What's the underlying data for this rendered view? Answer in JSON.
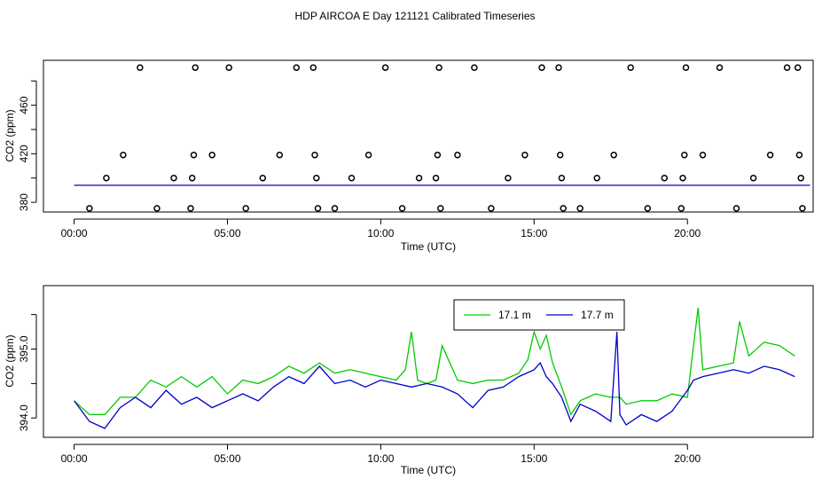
{
  "title": "HDP AIRCOA E  Day 121121  Calibrated Timeseries",
  "colors": {
    "series_green": "#00cc00",
    "series_blue": "#0000cc",
    "frame": "#000000"
  },
  "chart_data": [
    {
      "type": "scatter",
      "xlabel": "Time (UTC)",
      "ylabel": "CO2 (ppm)",
      "x_ticks": [
        "00:00",
        "05:00",
        "10:00",
        "15:00",
        "20:00"
      ],
      "x_tick_hours": [
        0,
        5,
        10,
        15,
        20
      ],
      "y_ticks": [
        380,
        420,
        460
      ],
      "y_minor_ticks": [
        380,
        400,
        420,
        440,
        460,
        480
      ],
      "xlim": [
        -1.0,
        24.1
      ],
      "ylim": [
        372,
        497
      ],
      "grid": false,
      "calibration_points": {
        "x": [
          0.5,
          1.05,
          1.6,
          2.15,
          2.7,
          3.25,
          3.8,
          3.85,
          3.9,
          3.95,
          4.5,
          5.05,
          5.6,
          6.15,
          6.7,
          7.25,
          7.8,
          7.85,
          7.9,
          7.95,
          8.5,
          9.05,
          9.6,
          10.15,
          10.7,
          11.25,
          11.8,
          11.85,
          11.9,
          11.95,
          12.5,
          13.05,
          13.6,
          14.15,
          14.7,
          15.25,
          15.8,
          15.85,
          15.9,
          15.95,
          16.5,
          17.05,
          17.6,
          18.15,
          18.7,
          19.25,
          19.8,
          19.85,
          19.9,
          19.95,
          20.5,
          21.05,
          21.6,
          22.15,
          22.7,
          23.25,
          23.6,
          23.65,
          23.7,
          23.75
        ],
        "y": [
          375,
          400,
          419,
          491,
          375,
          400,
          375,
          400,
          419,
          491,
          419,
          491,
          375,
          400,
          419,
          491,
          491,
          419,
          400,
          375,
          375,
          400,
          419,
          491,
          375,
          400,
          400,
          419,
          491,
          375,
          419,
          491,
          375,
          400,
          419,
          491,
          491,
          419,
          400,
          375,
          375,
          400,
          419,
          491,
          375,
          400,
          375,
          400,
          419,
          491,
          419,
          491,
          375,
          400,
          419,
          491,
          491,
          419,
          400,
          375
        ]
      },
      "series": [
        {
          "name": "",
          "hours": [
            0,
            24
          ],
          "values": [
            394,
            394
          ]
        }
      ]
    },
    {
      "type": "line",
      "xlabel": "Time (UTC)",
      "ylabel": "CO2 (ppm)",
      "x_ticks": [
        "00:00",
        "05:00",
        "10:00",
        "15:00",
        "20:00"
      ],
      "x_tick_hours": [
        0,
        5,
        10,
        15,
        20
      ],
      "y_ticks": [
        "394.0",
        "395.0"
      ],
      "y_tick_values": [
        394.0,
        395.0
      ],
      "y_minor_ticks": [
        394.0,
        394.5,
        395.0,
        395.5
      ],
      "xlim": [
        -1.0,
        24.1
      ],
      "ylim": [
        393.72,
        395.92
      ],
      "grid": false,
      "legend_position": "top-center",
      "series": [
        {
          "name": "17.1 m",
          "color": "#00cc00",
          "hours": [
            0,
            0.5,
            1,
            1.5,
            2,
            2.5,
            3,
            3.5,
            4,
            4.5,
            5,
            5.5,
            6,
            6.5,
            7,
            7.5,
            8,
            8.5,
            9,
            9.5,
            10,
            10.5,
            10.8,
            11,
            11.2,
            11.5,
            11.8,
            12,
            12.5,
            13,
            13.5,
            14,
            14.5,
            14.8,
            15,
            15.2,
            15.4,
            15.6,
            15.9,
            16.2,
            16.5,
            17,
            17.5,
            17.8,
            18,
            18.5,
            19,
            19.5,
            20,
            20.2,
            20.35,
            20.5,
            21,
            21.5,
            21.7,
            22,
            22.5,
            23,
            23.5
          ],
          "values": [
            394.25,
            394.05,
            394.05,
            394.3,
            394.3,
            394.55,
            394.45,
            394.6,
            394.45,
            394.6,
            394.35,
            394.55,
            394.5,
            394.6,
            394.75,
            394.65,
            394.8,
            394.65,
            394.7,
            394.65,
            394.6,
            394.55,
            394.7,
            395.25,
            394.55,
            394.5,
            394.55,
            395.05,
            394.55,
            394.5,
            394.55,
            394.55,
            394.65,
            394.85,
            395.25,
            395.0,
            395.2,
            394.8,
            394.45,
            394.05,
            394.25,
            394.35,
            394.3,
            394.3,
            394.2,
            394.25,
            394.25,
            394.35,
            394.3,
            395.05,
            395.6,
            394.7,
            394.75,
            394.8,
            395.4,
            394.9,
            395.1,
            395.05,
            394.9
          ]
        },
        {
          "name": "17.7 m",
          "color": "#0000cc",
          "hours": [
            0,
            0.5,
            1,
            1.5,
            2,
            2.5,
            3,
            3.5,
            4,
            4.5,
            5,
            5.5,
            6,
            6.5,
            7,
            7.5,
            8,
            8.5,
            9,
            9.5,
            10,
            10.5,
            11,
            11.5,
            12,
            12.5,
            13,
            13.5,
            14,
            14.5,
            15,
            15.2,
            15.4,
            15.6,
            15.9,
            16.2,
            16.5,
            17,
            17.5,
            17.7,
            17.8,
            18,
            18.5,
            19,
            19.5,
            20,
            20.2,
            20.5,
            21,
            21.5,
            22,
            22.5,
            23,
            23.5
          ],
          "values": [
            394.25,
            393.95,
            393.85,
            394.15,
            394.3,
            394.15,
            394.4,
            394.2,
            394.3,
            394.15,
            394.25,
            394.35,
            394.25,
            394.45,
            394.6,
            394.5,
            394.75,
            394.5,
            394.55,
            394.45,
            394.55,
            394.5,
            394.45,
            394.5,
            394.45,
            394.35,
            394.15,
            394.4,
            394.45,
            394.6,
            394.7,
            394.8,
            394.6,
            394.5,
            394.3,
            393.95,
            394.2,
            394.1,
            393.95,
            395.25,
            394.05,
            393.9,
            394.05,
            393.95,
            394.1,
            394.4,
            394.55,
            394.6,
            394.65,
            394.7,
            394.65,
            394.75,
            394.7,
            394.6
          ]
        }
      ]
    }
  ]
}
